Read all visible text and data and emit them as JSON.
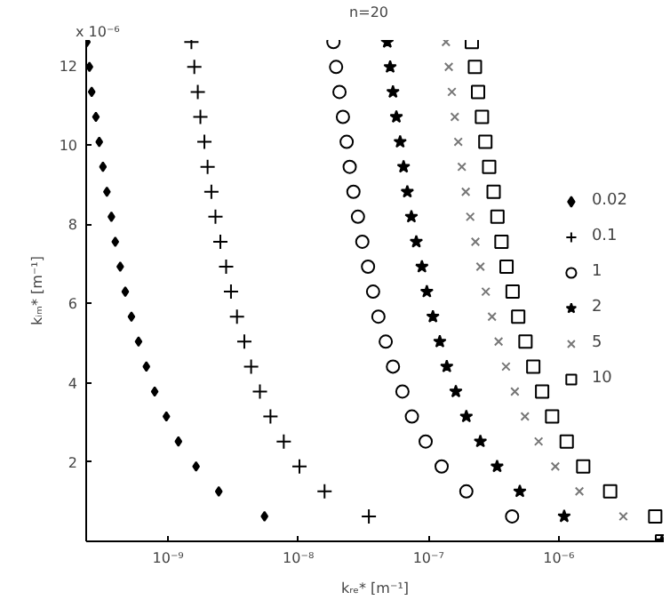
{
  "chart_data": {
    "type": "scatter",
    "xlabel": "kᵣₑ* [m⁻¹]",
    "ylabel": "kᵢₘ* [m⁻¹]",
    "annotations": [
      "x 10⁻⁶",
      "n=20"
    ],
    "log": "x",
    "grid": false,
    "legend": "right",
    "xlim": [
      2.35e-10,
      6.4e-06
    ],
    "xticks": [
      {
        "value": 1e-09,
        "label": "10⁻⁹"
      },
      {
        "value": 1e-08,
        "label": "10⁻⁸"
      },
      {
        "value": 1e-07,
        "label": "10⁻⁷"
      },
      {
        "value": 1e-06,
        "label": "10⁻⁶"
      }
    ],
    "ylim": [
      0,
      12.65
    ],
    "yticks": [
      2,
      4,
      6,
      8,
      10,
      12
    ],
    "series": [
      {
        "name": "0.02",
        "marker": "diamond",
        "color": "#000000",
        "x": [
          5.5e-09,
          2.45e-09,
          1.64e-09,
          1.2e-09,
          9.7e-10,
          7.89e-10,
          6.81e-10,
          5.93e-10,
          5.23e-10,
          4.69e-10,
          4.29e-10,
          3.93e-10,
          3.67e-10,
          3.39e-10,
          3.16e-10,
          2.96e-10,
          2.79e-10,
          2.59e-10,
          2.49e-10,
          2.38e-10
        ],
        "values": [
          0.63,
          1.26,
          1.89,
          2.52,
          3.15,
          3.78,
          4.41,
          5.04,
          5.67,
          6.3,
          6.93,
          7.56,
          8.19,
          8.82,
          9.45,
          10.08,
          10.71,
          11.34,
          11.97,
          12.6
        ]
      },
      {
        "name": "0.1",
        "marker": "cross",
        "color": "#000000",
        "x": [
          3.48e-08,
          1.59e-08,
          1.02e-08,
          7.73e-09,
          6.11e-09,
          5.07e-09,
          4.34e-09,
          3.85e-09,
          3.38e-09,
          3.04e-09,
          2.79e-09,
          2.52e-09,
          2.31e-09,
          2.15e-09,
          2.01e-09,
          1.9e-09,
          1.77e-09,
          1.69e-09,
          1.59e-09,
          1.51e-09
        ],
        "values": [
          0.63,
          1.26,
          1.89,
          2.52,
          3.15,
          3.78,
          4.41,
          5.04,
          5.67,
          6.3,
          6.93,
          7.56,
          8.19,
          8.82,
          9.45,
          10.08,
          10.71,
          11.34,
          11.97,
          12.6
        ]
      },
      {
        "name": "1",
        "marker": "circle",
        "color": "#000000",
        "x": [
          4.38e-07,
          1.95e-07,
          1.26e-07,
          9.5e-08,
          7.45e-08,
          6.3e-08,
          5.33e-08,
          4.69e-08,
          4.12e-08,
          3.75e-08,
          3.43e-08,
          3.1e-08,
          2.87e-08,
          2.65e-08,
          2.48e-08,
          2.35e-08,
          2.2e-08,
          2.07e-08,
          1.95e-08,
          1.86e-08
        ],
        "values": [
          0.63,
          1.26,
          1.89,
          2.52,
          3.15,
          3.78,
          4.41,
          5.04,
          5.67,
          6.3,
          6.93,
          7.56,
          8.19,
          8.82,
          9.45,
          10.08,
          10.71,
          11.34,
          11.97,
          12.6
        ]
      },
      {
        "name": "2",
        "marker": "star",
        "color": "#000000",
        "x": [
          6.2e-06,
          1.1e-06,
          5.02e-07,
          3.36e-07,
          2.5e-07,
          1.95e-07,
          1.62e-07,
          1.38e-07,
          1.22e-07,
          1.08e-07,
          9.7e-08,
          8.89e-08,
          8.05e-08,
          7.38e-08,
          6.87e-08,
          6.43e-08,
          6.05e-08,
          5.66e-08,
          5.33e-08,
          5.07e-08,
          4.82e-08
        ],
        "values": [
          0,
          0.63,
          1.26,
          1.89,
          2.52,
          3.15,
          3.78,
          4.41,
          5.04,
          5.67,
          6.3,
          6.93,
          7.56,
          8.19,
          8.82,
          9.45,
          10.08,
          10.71,
          11.34,
          11.97,
          12.6
        ]
      },
      {
        "name": "5",
        "marker": "x",
        "color": "#777777",
        "x": [
          3.13e-06,
          1.44e-06,
          9.4e-07,
          7e-07,
          5.5e-07,
          4.6e-07,
          3.93e-07,
          3.45e-07,
          3.07e-07,
          2.75e-07,
          2.5e-07,
          2.29e-07,
          2.09e-07,
          1.93e-07,
          1.8e-07,
          1.69e-07,
          1.59e-07,
          1.51e-07,
          1.43e-07,
          1.36e-07
        ],
        "values": [
          0.63,
          1.26,
          1.89,
          2.52,
          3.15,
          3.78,
          4.41,
          5.04,
          5.67,
          6.3,
          6.93,
          7.56,
          8.19,
          8.82,
          9.45,
          10.08,
          10.71,
          11.34,
          11.97,
          12.6
        ]
      },
      {
        "name": "10",
        "marker": "square",
        "color": "#000000",
        "x": [
          6.2e-06,
          5.5e-06,
          2.48e-06,
          1.54e-06,
          1.15e-06,
          8.89e-07,
          7.45e-07,
          6.37e-07,
          5.55e-07,
          4.88e-07,
          4.42e-07,
          3.97e-07,
          3.63e-07,
          3.38e-07,
          3.16e-07,
          2.92e-07,
          2.73e-07,
          2.57e-07,
          2.4e-07,
          2.27e-07,
          2.15e-07
        ],
        "values": [
          0,
          0.63,
          1.26,
          1.89,
          2.52,
          3.15,
          3.78,
          4.41,
          5.04,
          5.67,
          6.3,
          6.93,
          7.56,
          8.19,
          8.82,
          9.45,
          10.08,
          10.71,
          11.34,
          11.97,
          12.6
        ]
      }
    ]
  }
}
